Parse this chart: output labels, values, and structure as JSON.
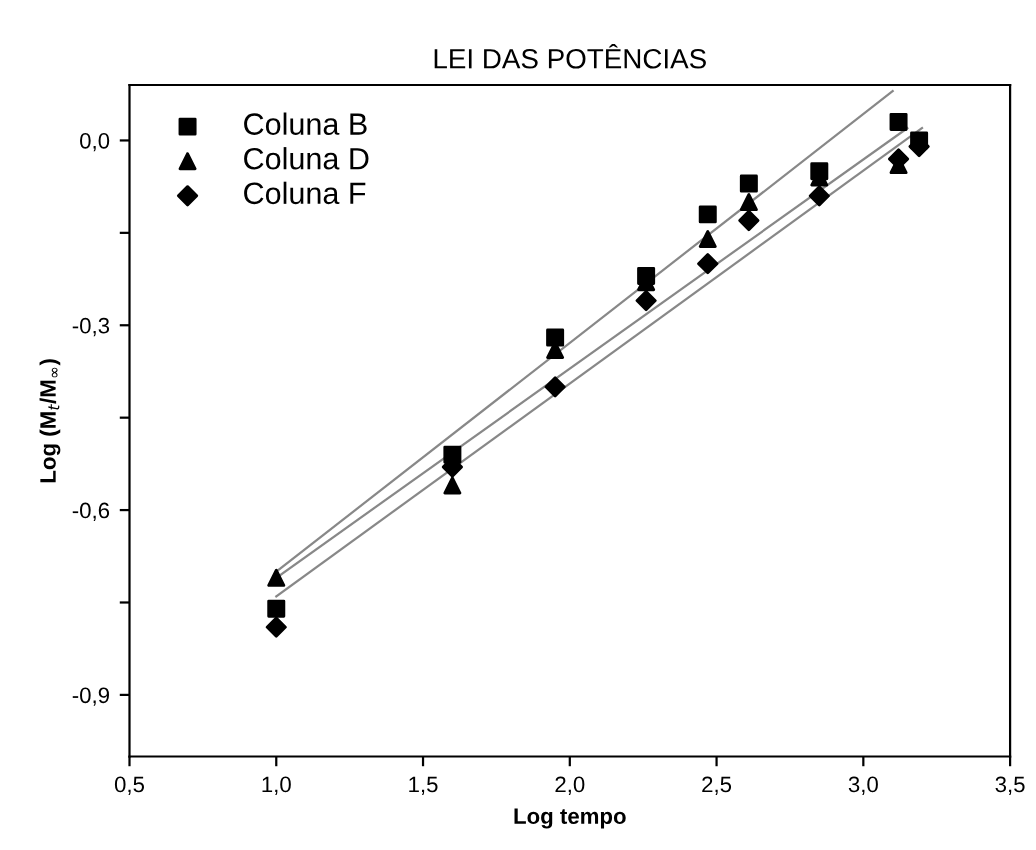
{
  "chart_data": {
    "type": "scatter",
    "title": "LEI DAS POTÊNCIAS",
    "xlabel": "Log tempo",
    "ylabel": "Log (M$_{t}$/M$_{∞}$)",
    "xlim": [
      0.5,
      3.5
    ],
    "ylim": [
      -1.0,
      0.09
    ],
    "xticks": [
      {
        "value": 0.5,
        "label": "0,5"
      },
      {
        "value": 1.0,
        "label": "1,0"
      },
      {
        "value": 1.5,
        "label": "1,5"
      },
      {
        "value": 2.0,
        "label": "2,0"
      },
      {
        "value": 2.5,
        "label": "2,5"
      },
      {
        "value": 3.0,
        "label": "3,0"
      },
      {
        "value": 3.5,
        "label": "3,5"
      }
    ],
    "yticks": [
      {
        "value": -0.9,
        "label": "-0,9"
      },
      {
        "value": -0.75,
        "label": null
      },
      {
        "value": -0.6,
        "label": "-0,6"
      },
      {
        "value": -0.45,
        "label": null
      },
      {
        "value": -0.3,
        "label": "-0,3"
      },
      {
        "value": -0.15,
        "label": null
      },
      {
        "value": 0.0,
        "label": "0,0"
      }
    ],
    "grid": false,
    "legend": "top left",
    "series": [
      {
        "name": "Coluna B",
        "color": "#000000",
        "marker": "square",
        "x": [
          1.0,
          1.6,
          1.95,
          2.26,
          2.47,
          2.61,
          2.85,
          3.12,
          3.19
        ],
        "values": [
          -0.76,
          -0.51,
          -0.32,
          -0.22,
          -0.12,
          -0.07,
          -0.05,
          0.03,
          0.0
        ]
      },
      {
        "name": "Coluna D",
        "color": "#000000",
        "marker": "triangle",
        "x": [
          1.0,
          1.6,
          1.95,
          2.26,
          2.47,
          2.61,
          2.85,
          3.12
        ],
        "values": [
          -0.71,
          -0.56,
          -0.34,
          -0.23,
          -0.16,
          -0.1,
          -0.06,
          -0.04
        ]
      },
      {
        "name": "Coluna F",
        "color": "#000000",
        "marker": "diamond",
        "x": [
          1.0,
          1.6,
          1.95,
          2.26,
          2.47,
          2.61,
          2.85,
          3.12,
          3.19
        ],
        "values": [
          -0.79,
          -0.53,
          -0.4,
          -0.26,
          -0.2,
          -0.13,
          -0.09,
          -0.03,
          -0.01
        ]
      },
      {
        "type": "line",
        "color": "#888888",
        "marker": "none",
        "x": [
          1.0,
          3.1
        ],
        "values": [
          -0.7,
          0.08
        ]
      },
      {
        "type": "line",
        "color": "#888888",
        "marker": "none",
        "x": [
          1.0,
          3.15
        ],
        "values": [
          -0.71,
          0.02
        ]
      },
      {
        "type": "line",
        "color": "#888888",
        "marker": "none",
        "x": [
          1.0,
          3.2
        ],
        "values": [
          -0.74,
          0.02
        ]
      }
    ]
  }
}
